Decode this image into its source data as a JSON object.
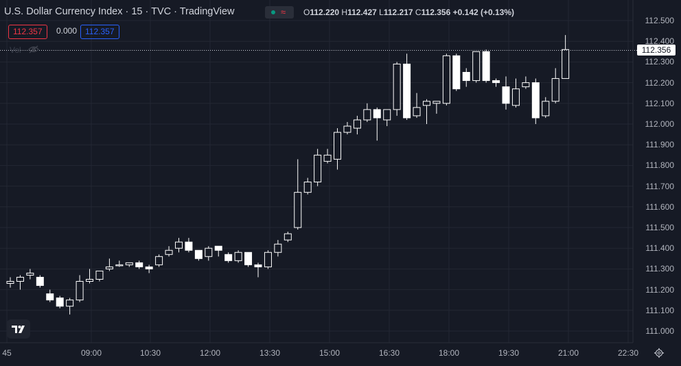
{
  "header": {
    "symbol_title": "U.S. Dollar Currency Index · 15 · TVC · TradingView",
    "status_dot_color": "#089981",
    "wave_glyph": "≈",
    "wave_color": "#f23645"
  },
  "ohlc": {
    "o_label": "O",
    "o_value": "112.220",
    "h_label": "H",
    "h_value": "112.427",
    "l_label": "L",
    "l_value": "112.217",
    "c_label": "C",
    "c_value": "112.356",
    "change": "+0.142 (+0.13%)",
    "value_color": "#d1d4dc"
  },
  "badges": {
    "bid": "112.357",
    "spread": "0.000",
    "ask": "112.357",
    "bid_color": "#f23645",
    "ask_color": "#2962ff"
  },
  "volume_label": "Vol",
  "last_price_label": "112.356",
  "colors": {
    "background": "#161a25",
    "grid": "#232733",
    "candle_body": "#ffffff",
    "candle_wick": "#ffffff"
  },
  "chart_data": {
    "type": "candlestick",
    "y_ticks": [
      "112.500",
      "112.400",
      "112.300",
      "112.200",
      "112.100",
      "112.000",
      "111.900",
      "111.800",
      "111.700",
      "111.600",
      "111.500",
      "111.400",
      "111.300",
      "111.200",
      "111.100",
      "111.000"
    ],
    "x_ticks": [
      "45",
      "09:00",
      "10:30",
      "12:00",
      "13:30",
      "15:00",
      "16:30",
      "18:00",
      "19:30",
      "21:00",
      "22:30"
    ],
    "ylim": [
      111.0,
      112.5
    ],
    "last_price": 112.356,
    "candles": [
      {
        "o": 111.23,
        "h": 111.26,
        "l": 111.21,
        "c": 111.24
      },
      {
        "o": 111.24,
        "h": 111.27,
        "l": 111.2,
        "c": 111.26
      },
      {
        "o": 111.27,
        "h": 111.3,
        "l": 111.25,
        "c": 111.28
      },
      {
        "o": 111.26,
        "h": 111.27,
        "l": 111.21,
        "c": 111.22
      },
      {
        "o": 111.18,
        "h": 111.2,
        "l": 111.14,
        "c": 111.15
      },
      {
        "o": 111.16,
        "h": 111.17,
        "l": 111.11,
        "c": 111.12
      },
      {
        "o": 111.12,
        "h": 111.16,
        "l": 111.08,
        "c": 111.15
      },
      {
        "o": 111.15,
        "h": 111.27,
        "l": 111.14,
        "c": 111.24
      },
      {
        "o": 111.24,
        "h": 111.3,
        "l": 111.23,
        "c": 111.25
      },
      {
        "o": 111.25,
        "h": 111.29,
        "l": 111.24,
        "c": 111.29
      },
      {
        "o": 111.3,
        "h": 111.35,
        "l": 111.29,
        "c": 111.31
      },
      {
        "o": 111.32,
        "h": 111.34,
        "l": 111.31,
        "c": 111.32
      },
      {
        "o": 111.32,
        "h": 111.33,
        "l": 111.31,
        "c": 111.33
      },
      {
        "o": 111.33,
        "h": 111.34,
        "l": 111.3,
        "c": 111.31
      },
      {
        "o": 111.31,
        "h": 111.32,
        "l": 111.28,
        "c": 111.3
      },
      {
        "o": 111.32,
        "h": 111.37,
        "l": 111.31,
        "c": 111.36
      },
      {
        "o": 111.37,
        "h": 111.41,
        "l": 111.36,
        "c": 111.39
      },
      {
        "o": 111.4,
        "h": 111.45,
        "l": 111.38,
        "c": 111.43
      },
      {
        "o": 111.43,
        "h": 111.45,
        "l": 111.38,
        "c": 111.39
      },
      {
        "o": 111.39,
        "h": 111.39,
        "l": 111.34,
        "c": 111.35
      },
      {
        "o": 111.36,
        "h": 111.41,
        "l": 111.34,
        "c": 111.4
      },
      {
        "o": 111.41,
        "h": 111.41,
        "l": 111.36,
        "c": 111.39
      },
      {
        "o": 111.37,
        "h": 111.38,
        "l": 111.33,
        "c": 111.34
      },
      {
        "o": 111.34,
        "h": 111.39,
        "l": 111.33,
        "c": 111.38
      },
      {
        "o": 111.38,
        "h": 111.38,
        "l": 111.31,
        "c": 111.32
      },
      {
        "o": 111.32,
        "h": 111.33,
        "l": 111.26,
        "c": 111.31
      },
      {
        "o": 111.31,
        "h": 111.39,
        "l": 111.3,
        "c": 111.38
      },
      {
        "o": 111.38,
        "h": 111.44,
        "l": 111.36,
        "c": 111.42
      },
      {
        "o": 111.44,
        "h": 111.48,
        "l": 111.43,
        "c": 111.47
      },
      {
        "o": 111.5,
        "h": 111.83,
        "l": 111.49,
        "c": 111.67
      },
      {
        "o": 111.67,
        "h": 111.74,
        "l": 111.66,
        "c": 111.72
      },
      {
        "o": 111.72,
        "h": 111.88,
        "l": 111.7,
        "c": 111.85
      },
      {
        "o": 111.82,
        "h": 111.88,
        "l": 111.81,
        "c": 111.85
      },
      {
        "o": 111.83,
        "h": 111.98,
        "l": 111.78,
        "c": 111.96
      },
      {
        "o": 111.96,
        "h": 112.01,
        "l": 111.95,
        "c": 111.99
      },
      {
        "o": 111.98,
        "h": 112.04,
        "l": 111.95,
        "c": 112.02
      },
      {
        "o": 112.02,
        "h": 112.1,
        "l": 112.01,
        "c": 112.07
      },
      {
        "o": 112.07,
        "h": 112.08,
        "l": 111.92,
        "c": 112.03
      },
      {
        "o": 112.02,
        "h": 112.07,
        "l": 111.99,
        "c": 112.07
      },
      {
        "o": 112.07,
        "h": 112.3,
        "l": 112.04,
        "c": 112.29
      },
      {
        "o": 112.29,
        "h": 112.34,
        "l": 112.02,
        "c": 112.03
      },
      {
        "o": 112.04,
        "h": 112.15,
        "l": 112.03,
        "c": 112.08
      },
      {
        "o": 112.09,
        "h": 112.12,
        "l": 112.0,
        "c": 112.11
      },
      {
        "o": 112.1,
        "h": 112.11,
        "l": 112.05,
        "c": 112.11
      },
      {
        "o": 112.1,
        "h": 112.34,
        "l": 112.09,
        "c": 112.33
      },
      {
        "o": 112.33,
        "h": 112.34,
        "l": 112.16,
        "c": 112.17
      },
      {
        "o": 112.25,
        "h": 112.27,
        "l": 112.18,
        "c": 112.21
      },
      {
        "o": 112.21,
        "h": 112.35,
        "l": 112.2,
        "c": 112.35
      },
      {
        "o": 112.35,
        "h": 112.36,
        "l": 112.2,
        "c": 112.21
      },
      {
        "o": 112.21,
        "h": 112.22,
        "l": 112.18,
        "c": 112.2
      },
      {
        "o": 112.18,
        "h": 112.23,
        "l": 112.07,
        "c": 112.1
      },
      {
        "o": 112.09,
        "h": 112.22,
        "l": 112.08,
        "c": 112.17
      },
      {
        "o": 112.18,
        "h": 112.23,
        "l": 112.17,
        "c": 112.2
      },
      {
        "o": 112.2,
        "h": 112.22,
        "l": 112.0,
        "c": 112.03
      },
      {
        "o": 112.04,
        "h": 112.13,
        "l": 112.03,
        "c": 112.11
      },
      {
        "o": 112.11,
        "h": 112.27,
        "l": 112.1,
        "c": 112.22
      },
      {
        "o": 112.22,
        "h": 112.43,
        "l": 112.22,
        "c": 112.36
      }
    ]
  }
}
